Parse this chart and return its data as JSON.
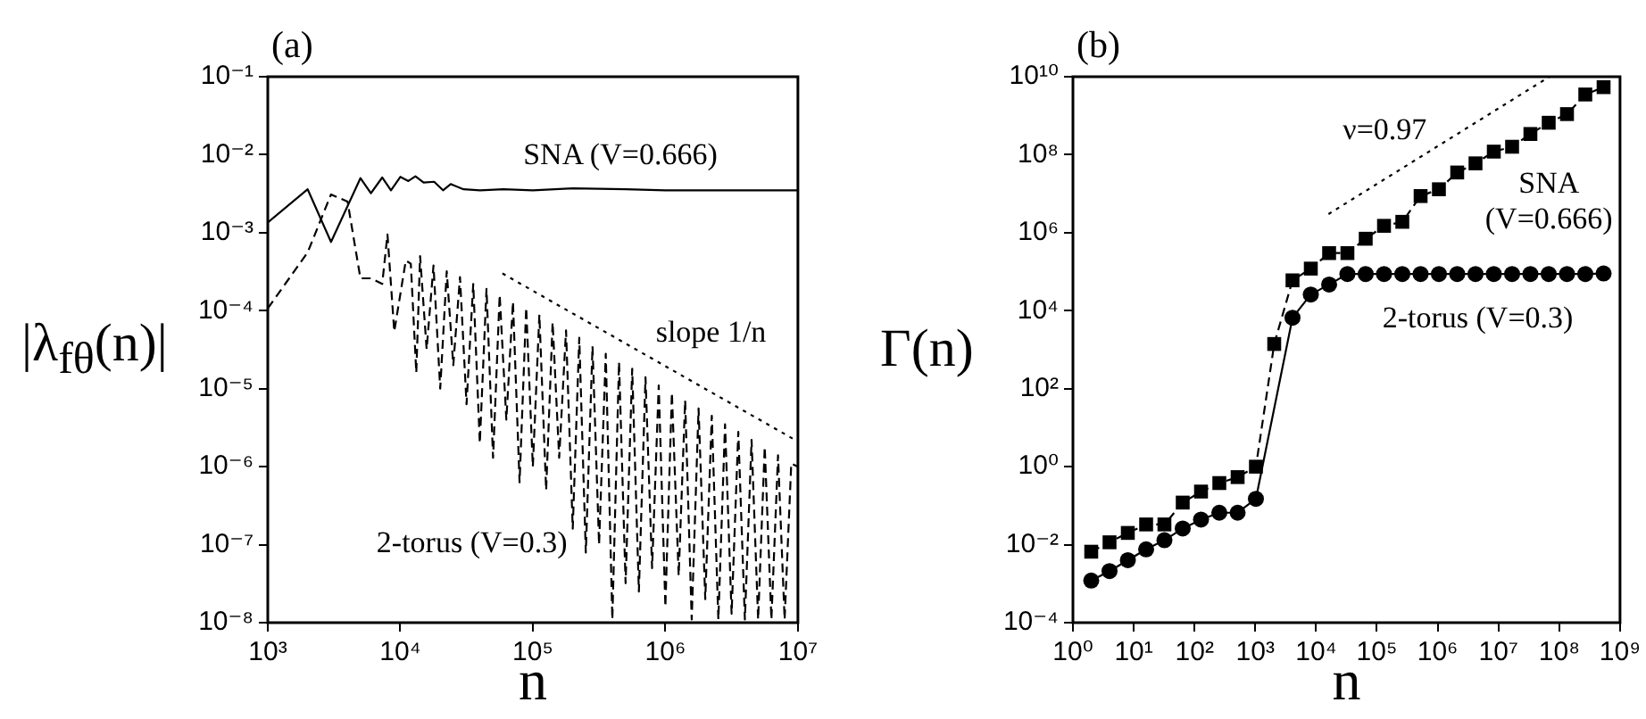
{
  "chart_data": [
    {
      "type": "line",
      "title": "(a)",
      "xlabel": "n",
      "ylabel": "|λ$_{fθ}$(n)|",
      "log": "xy",
      "grid": false,
      "legend": false,
      "xlim": [
        1000,
        10000000.0
      ],
      "xticks": [
        {
          "value": 1000,
          "label": "10³"
        },
        {
          "value": 10000.0,
          "label": "10⁴"
        },
        {
          "value": 100000.0,
          "label": "10⁵"
        },
        {
          "value": 1000000.0,
          "label": "10⁶"
        },
        {
          "value": 10000000.0,
          "label": "10⁷"
        }
      ],
      "ylim": [
        1e-08,
        0.1
      ],
      "yticks": [
        {
          "value": 1e-08,
          "label": "10⁻⁸"
        },
        {
          "value": 1e-07,
          "label": "10⁻⁷"
        },
        {
          "value": 1e-06,
          "label": "10⁻⁶"
        },
        {
          "value": 1e-05,
          "label": "10⁻⁵"
        },
        {
          "value": 0.0001,
          "label": "10⁻⁴"
        },
        {
          "value": 0.001,
          "label": "10⁻³"
        },
        {
          "value": 0.01,
          "label": "10⁻²"
        },
        {
          "value": 0.1,
          "label": "10⁻¹"
        }
      ],
      "series": [
        {
          "name": "SNA (V=0.666)",
          "color": "#000000",
          "line_style": "solid",
          "marker": "none",
          "x": [
            1000,
            2000,
            3000,
            5000,
            6000,
            7300,
            8500,
            10000.0,
            11500.0,
            13000.0,
            15000.0,
            18000.0,
            21000.0,
            24000.0,
            30000.0,
            40000.0,
            60000.0,
            100000.0,
            200000.0,
            500000.0,
            1000000.0,
            3000000.0,
            10000000.0
          ],
          "values": [
            0.00135,
            0.0036,
            0.00076,
            0.005,
            0.0032,
            0.0051,
            0.0035,
            0.0052,
            0.0046,
            0.0053,
            0.0044,
            0.0045,
            0.0035,
            0.0042,
            0.0036,
            0.0035,
            0.0036,
            0.0035,
            0.0037,
            0.0036,
            0.0035,
            0.0035,
            0.0035
          ]
        },
        {
          "name": "2-torus (V=0.3)",
          "color": "#000000",
          "line_style": "dashed",
          "marker": "none",
          "x": [
            1000,
            2000,
            3000,
            4000,
            5000,
            6000,
            7300,
            8000,
            9000,
            11000.0,
            12000.0,
            13200.0,
            14100.0,
            15800.0,
            17800.0,
            20000.0,
            22400.0,
            25100.0,
            28200.0,
            31600.0,
            35500.0,
            39800.0,
            44700.0,
            50100.0,
            56200.0,
            63100.0,
            70800.0,
            79400.0,
            89100.0,
            100000.0,
            112000.0,
            126000.0,
            141000.0,
            158000.0,
            178000.0,
            200000.0,
            224000.0,
            251000.0,
            282000.0,
            316000.0,
            355000.0,
            398000.0,
            447000.0,
            501000.0,
            562000.0,
            631000.0,
            708000.0,
            794000.0,
            891000.0,
            1000000.0,
            1120000.0,
            1260000.0,
            1410000.0,
            1580000.0,
            1780000.0,
            2000000.0,
            2240000.0,
            2510000.0,
            2820000.0,
            3160000.0,
            3550000.0,
            3980000.0,
            4470000.0,
            5010000.0,
            5620000.0,
            6310000.0,
            7080000.0,
            7940000.0,
            8910000.0,
            10000000.0
          ],
          "values": [
            0.000107,
            0.00056,
            0.0031,
            0.0025,
            0.00026,
            0.00026,
            0.00022,
            0.00095,
            5.4e-05,
            0.00044,
            0.0004,
            1.6e-05,
            0.0005,
            3.2e-05,
            0.00038,
            1e-05,
            0.00032,
            2e-05,
            0.00027,
            6.3e-06,
            0.00022,
            2e-06,
            0.00019,
            1.3e-06,
            0.00016,
            4e-06,
            0.00013,
            6.3e-07,
            0.00011,
            1e-06,
            8.9e-05,
            5e-07,
            7.1e-05,
            1.3e-06,
            5.6e-05,
            1.6e-07,
            4.5e-05,
            7.9e-08,
            3.5e-05,
            1e-07,
            2.8e-05,
            1.1e-08,
            2.2e-05,
            3.2e-08,
            1.8e-05,
            2.5e-08,
            1.4e-05,
            5e-08,
            1.1e-05,
            1.6e-08,
            8.9e-06,
            4e-08,
            7.1e-06,
            1.1e-08,
            5.6e-06,
            2e-08,
            4.5e-06,
            1.1e-08,
            3.5e-06,
            1.3e-08,
            2.8e-06,
            1.1e-08,
            2.2e-06,
            1.1e-08,
            1.8e-06,
            1.1e-08,
            1.4e-06,
            1.1e-08,
            1.1e-06,
            1e-06
          ]
        },
        {
          "name": "slope 1/n",
          "color": "#000000",
          "line_style": "dotted",
          "marker": "none",
          "x": [
            59000.0,
            10000000.0
          ],
          "values": [
            0.0003,
            2.1e-06
          ]
        }
      ]
    },
    {
      "type": "line",
      "title": "(b)",
      "xlabel": "n",
      "ylabel": "Γ(n)",
      "log": "xy",
      "grid": false,
      "legend": false,
      "xlim": [
        1,
        1000000000.0
      ],
      "xticks": [
        {
          "value": 1,
          "label": "10⁰"
        },
        {
          "value": 10,
          "label": "10¹"
        },
        {
          "value": 100,
          "label": "10²"
        },
        {
          "value": 1000,
          "label": "10³"
        },
        {
          "value": 10000.0,
          "label": "10⁴"
        },
        {
          "value": 100000.0,
          "label": "10⁵"
        },
        {
          "value": 1000000.0,
          "label": "10⁶"
        },
        {
          "value": 10000000.0,
          "label": "10⁷"
        },
        {
          "value": 100000000.0,
          "label": "10⁸"
        },
        {
          "value": 1000000000.0,
          "label": "10⁹"
        }
      ],
      "ylim": [
        0.0001,
        10000000000.0
      ],
      "yticks": [
        {
          "value": 0.0001,
          "label": "10⁻⁴"
        },
        {
          "value": 0.01,
          "label": "10⁻²"
        },
        {
          "value": 1,
          "label": "10⁰"
        },
        {
          "value": 100,
          "label": "10²"
        },
        {
          "value": 10000.0,
          "label": "10⁴"
        },
        {
          "value": 1000000.0,
          "label": "10⁶"
        },
        {
          "value": 100000000.0,
          "label": "10⁸"
        },
        {
          "value": 10000000000.0,
          "label": "10¹⁰"
        }
      ],
      "x": [
        2,
        4,
        8,
        16,
        32,
        64,
        128,
        256,
        512,
        1024,
        2048,
        4096,
        8192,
        16384,
        32768,
        65536,
        131072,
        262144,
        524288,
        1048576,
        2097152,
        4194304,
        8388608,
        16777216,
        33554432,
        67108864,
        134217728,
        268435456,
        536870912
      ],
      "series": [
        {
          "name": "SNA (V=0.666)",
          "color": "#000000",
          "line_style": "dashed",
          "marker": "square",
          "values": [
            0.0066,
            0.0115,
            0.02,
            0.033,
            0.033,
            0.12,
            0.23,
            0.38,
            0.54,
            1.0,
            1400,
            60000.0,
            120000.0,
            300000.0,
            300000.0,
            700000.0,
            1500000.0,
            1900000.0,
            8700000.0,
            13000000.0,
            35000000.0,
            60000000.0,
            120000000.0,
            160000000.0,
            340000000.0,
            660000000.0,
            1100000000.0,
            3500000000.0,
            5400000000.0
          ]
        },
        {
          "name": "2-torus (V=0.3)",
          "color": "#000000",
          "line_style": "solid",
          "marker": "circle",
          "values": [
            0.0012,
            0.0021,
            0.004,
            0.0076,
            0.013,
            0.026,
            0.044,
            0.066,
            0.066,
            0.15,
            null,
            6600,
            26000.0,
            47000.0,
            87000.0,
            87000.0,
            87000.0,
            87000.0,
            87000.0,
            87000.0,
            87000.0,
            87000.0,
            87000.0,
            87000.0,
            87000.0,
            87000.0,
            87000.0,
            87000.0,
            90000.0
          ]
        },
        {
          "name": "ν=0.97",
          "color": "#000000",
          "line_style": "dotted",
          "marker": "none",
          "x": [
            16000.0,
            69000000.0
          ],
          "values": [
            3000000.0,
            10000000000.0
          ]
        }
      ]
    }
  ]
}
